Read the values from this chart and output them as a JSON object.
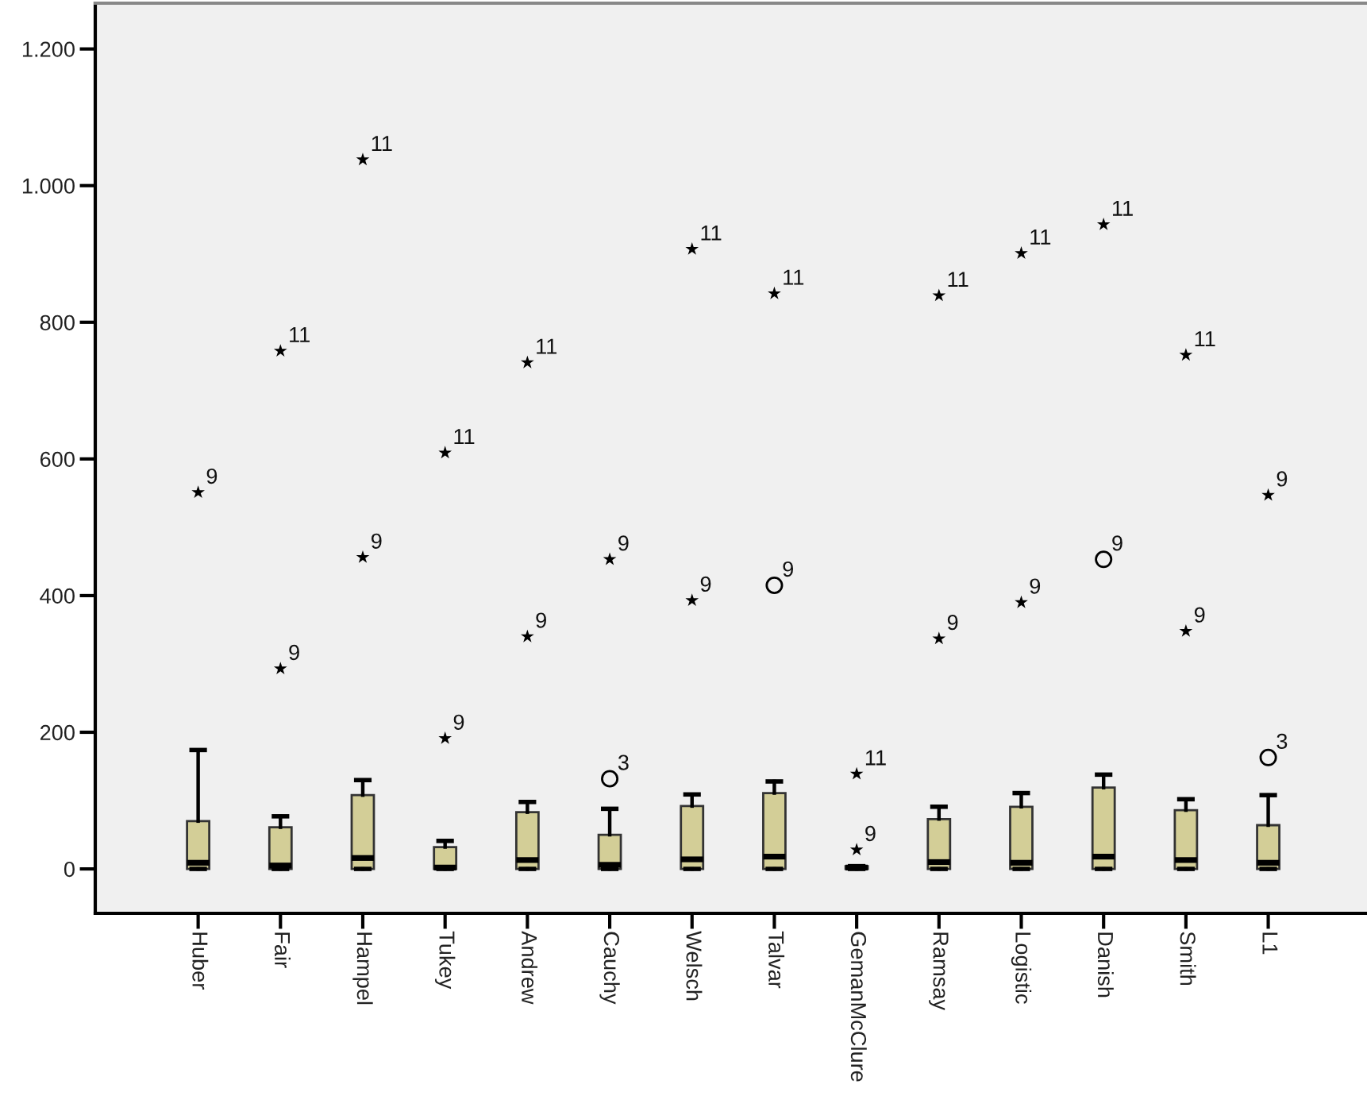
{
  "chart_data": {
    "type": "box",
    "categories": [
      "Huber",
      "Fair",
      "Hampel",
      "Tukey",
      "Andrew",
      "Cauchy",
      "Welsch",
      "Talvar",
      "GemanMcClure",
      "Ramsay",
      "Logistic",
      "Danish",
      "Smith",
      "L1"
    ],
    "ylim": [
      -65,
      1267
    ],
    "yticks": [
      0,
      200,
      400,
      600,
      800,
      {
        "value": 1000,
        "label": "1.000"
      },
      {
        "value": 1200,
        "label": "1.200"
      }
    ],
    "grid": false,
    "series": [
      {
        "color": "#d3ce97",
        "boxes": [
          {
            "low": 0,
            "q1": 0,
            "median": 9,
            "q3": 70,
            "high": 174
          },
          {
            "low": 0,
            "q1": 0,
            "median": 5,
            "q3": 61,
            "high": 77
          },
          {
            "low": 0,
            "q1": 0,
            "median": 16,
            "q3": 108,
            "high": 130
          },
          {
            "low": 0,
            "q1": 0,
            "median": 2,
            "q3": 32,
            "high": 41
          },
          {
            "low": 0,
            "q1": 0,
            "median": 13,
            "q3": 83,
            "high": 98
          },
          {
            "low": 0,
            "q1": 0,
            "median": 6,
            "q3": 50,
            "high": 88
          },
          {
            "low": 0,
            "q1": 0,
            "median": 14,
            "q3": 92,
            "high": 109
          },
          {
            "low": 0,
            "q1": 0,
            "median": 18,
            "q3": 111,
            "high": 128
          },
          {
            "low": 0,
            "q1": 0,
            "median": 2,
            "q3": 4,
            "high": 4
          },
          {
            "low": 0,
            "q1": 0,
            "median": 10,
            "q3": 73,
            "high": 91
          },
          {
            "low": 0,
            "q1": 0,
            "median": 9,
            "q3": 91,
            "high": 111
          },
          {
            "low": 0,
            "q1": 0,
            "median": 18,
            "q3": 119,
            "high": 138
          },
          {
            "low": 0,
            "q1": 0,
            "median": 13,
            "q3": 86,
            "high": 102
          },
          {
            "low": 0,
            "q1": 0,
            "median": 9,
            "q3": 64,
            "high": 108
          }
        ]
      },
      {
        "type": "scatter",
        "marker": "circle",
        "color": "#000000",
        "x": [
          "Cauchy",
          "Talvar",
          "Danish",
          "L1"
        ],
        "values": [
          132,
          415,
          453,
          163
        ]
      },
      {
        "type": "scatter",
        "marker": "star",
        "color": "#000000",
        "x": [
          "Huber",
          "Fair",
          "Fair",
          "Hampel",
          "Hampel",
          "Tukey",
          "Tukey",
          "Andrew",
          "Andrew",
          "Cauchy",
          "Welsch",
          "Welsch",
          "Talvar",
          "GemanMcClure",
          "GemanMcClure",
          "Ramsay",
          "Ramsay",
          "Logistic",
          "Logistic",
          "Danish",
          "Smith",
          "Smith",
          "L1"
        ],
        "values": [
          551,
          758,
          293,
          1038,
          456,
          609,
          191,
          741,
          340,
          453,
          907,
          393,
          842,
          139,
          28,
          839,
          337,
          901,
          390,
          943,
          752,
          348,
          547
        ]
      }
    ],
    "annotations": [
      {
        "text": "9",
        "x": "Huber",
        "y": 551
      },
      {
        "text": "11",
        "x": "Fair",
        "y": 758
      },
      {
        "text": "9",
        "x": "Fair",
        "y": 293
      },
      {
        "text": "11",
        "x": "Hampel",
        "y": 1038
      },
      {
        "text": "9",
        "x": "Hampel",
        "y": 456
      },
      {
        "text": "11",
        "x": "Tukey",
        "y": 609
      },
      {
        "text": "9",
        "x": "Tukey",
        "y": 191
      },
      {
        "text": "11",
        "x": "Andrew",
        "y": 741
      },
      {
        "text": "9",
        "x": "Andrew",
        "y": 340
      },
      {
        "text": "9",
        "x": "Cauchy",
        "y": 453
      },
      {
        "text": "3",
        "x": "Cauchy",
        "y": 132
      },
      {
        "text": "11",
        "x": "Welsch",
        "y": 907
      },
      {
        "text": "9",
        "x": "Welsch",
        "y": 393
      },
      {
        "text": "11",
        "x": "Talvar",
        "y": 842
      },
      {
        "text": "9",
        "x": "Talvar",
        "y": 415
      },
      {
        "text": "11",
        "x": "GemanMcClure",
        "y": 139
      },
      {
        "text": "9",
        "x": "GemanMcClure",
        "y": 28
      },
      {
        "text": "11",
        "x": "Ramsay",
        "y": 839
      },
      {
        "text": "9",
        "x": "Ramsay",
        "y": 337
      },
      {
        "text": "11",
        "x": "Logistic",
        "y": 901
      },
      {
        "text": "9",
        "x": "Logistic",
        "y": 390
      },
      {
        "text": "11",
        "x": "Danish",
        "y": 943
      },
      {
        "text": "9",
        "x": "Danish",
        "y": 453
      },
      {
        "text": "11",
        "x": "Smith",
        "y": 752
      },
      {
        "text": "9",
        "x": "Smith",
        "y": 348
      },
      {
        "text": "9",
        "x": "L1",
        "y": 547
      },
      {
        "text": "3",
        "x": "L1",
        "y": 163
      }
    ]
  }
}
